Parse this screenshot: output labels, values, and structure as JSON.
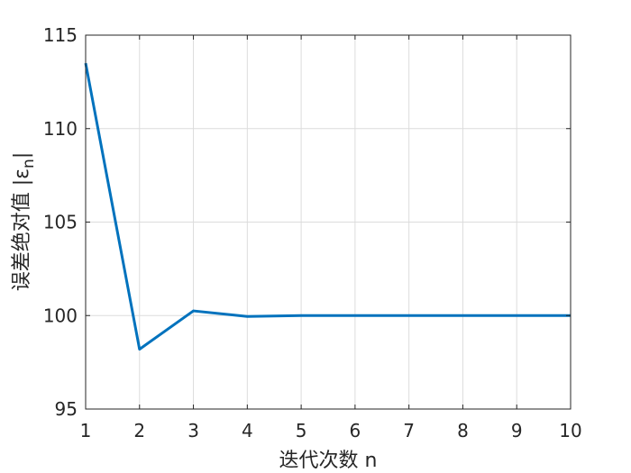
{
  "chart_data": {
    "type": "line",
    "xlabel": "迭代次数 n",
    "ylabel_prefix": "误差绝对值 |ε",
    "ylabel_subscript": "n",
    "ylabel_suffix": "|",
    "xlim": [
      1,
      10
    ],
    "ylim": [
      95,
      115
    ],
    "grid": true,
    "x_ticks": [
      "1",
      "2",
      "3",
      "4",
      "5",
      "6",
      "7",
      "8",
      "9",
      "10"
    ],
    "y_ticks": [
      "95",
      "100",
      "105",
      "110",
      "115"
    ],
    "series": [
      {
        "color": "#0072BD",
        "x": [
          1,
          2,
          3,
          4,
          5,
          6,
          7,
          8,
          9,
          10
        ],
        "y": [
          113.5,
          98.2,
          100.25,
          99.95,
          100.0,
          100.0,
          100.0,
          100.0,
          100.0,
          100.0
        ]
      }
    ]
  }
}
